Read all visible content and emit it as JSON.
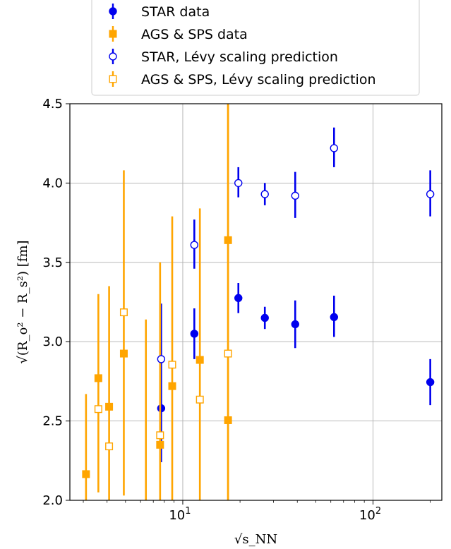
{
  "chart_data": {
    "type": "scatter",
    "xscale": "log",
    "xlim": [
      2.55,
      230
    ],
    "ylim": [
      2.0,
      4.5
    ],
    "grid": true,
    "legend_placement": "top-center",
    "xlabel": "√s_NN",
    "ylabel": "√(R_o² − R_s²) [fm]",
    "x_tick_labels": [
      {
        "value": 10,
        "base": "10",
        "exp": "1"
      },
      {
        "value": 100,
        "base": "10",
        "exp": "2"
      }
    ],
    "y_ticks": [
      2.0,
      2.5,
      3.0,
      3.5,
      4.0,
      4.5
    ],
    "y_tick_labels": [
      "2.0",
      "2.5",
      "3.0",
      "3.5",
      "4.0",
      "4.5"
    ],
    "series": [
      {
        "name": "STAR data",
        "color": "#0000ee",
        "marker": "filled-circle",
        "points": [
          {
            "x": 7.7,
            "y": 2.58,
            "lo": 2.24,
            "hi": 3.24
          },
          {
            "x": 11.5,
            "y": 3.05,
            "lo": 2.89,
            "hi": 3.21
          },
          {
            "x": 19.6,
            "y": 3.275,
            "lo": 3.18,
            "hi": 3.37
          },
          {
            "x": 27,
            "y": 3.15,
            "lo": 3.08,
            "hi": 3.22
          },
          {
            "x": 39,
            "y": 3.11,
            "lo": 2.96,
            "hi": 3.26
          },
          {
            "x": 62.4,
            "y": 3.155,
            "lo": 3.03,
            "hi": 3.29
          },
          {
            "x": 200,
            "y": 2.745,
            "lo": 2.6,
            "hi": 2.89
          }
        ]
      },
      {
        "name": "AGS & SPS data",
        "color": "#ffa500",
        "marker": "filled-square",
        "points": [
          {
            "x": 3.1,
            "y": 2.165,
            "lo": 2.0,
            "hi": 2.67
          },
          {
            "x": 3.6,
            "y": 2.77,
            "lo": 2.05,
            "hi": 3.3
          },
          {
            "x": 4.1,
            "y": 2.59,
            "lo": 2.0,
            "hi": 3.35
          },
          {
            "x": 4.9,
            "y": 2.925,
            "lo": 2.03,
            "hi": 4.08
          },
          {
            "x": 7.6,
            "y": 2.35,
            "lo": 2.0,
            "hi": 3.5
          },
          {
            "x": 8.8,
            "y": 2.72,
            "lo": 2.0,
            "hi": 3.79
          },
          {
            "x": 12.3,
            "y": 2.885,
            "lo": 2.0,
            "hi": 3.84
          },
          {
            "x": 17.3,
            "y": 3.64,
            "lo": 2.0,
            "hi": 4.5
          },
          {
            "x": 17.3,
            "y": 2.505,
            "lo": 2.0,
            "hi": 4.5
          }
        ]
      },
      {
        "name": "STAR, Lévy scaling prediction",
        "color": "#0000ee",
        "marker": "open-circle",
        "points": [
          {
            "x": 7.7,
            "y": 2.89,
            "lo": 2.89,
            "hi": 2.89
          },
          {
            "x": 11.5,
            "y": 3.61,
            "lo": 3.46,
            "hi": 3.77
          },
          {
            "x": 19.6,
            "y": 4.0,
            "lo": 3.91,
            "hi": 4.1
          },
          {
            "x": 27,
            "y": 3.93,
            "lo": 3.86,
            "hi": 4.0
          },
          {
            "x": 39,
            "y": 3.92,
            "lo": 3.78,
            "hi": 4.07
          },
          {
            "x": 62.4,
            "y": 4.22,
            "lo": 4.1,
            "hi": 4.35
          },
          {
            "x": 200,
            "y": 3.93,
            "lo": 3.79,
            "hi": 4.08
          }
        ]
      },
      {
        "name": "AGS & SPS, Lévy scaling prediction",
        "color": "#ffa500",
        "marker": "open-square",
        "points": [
          {
            "x": 3.6,
            "y": 2.575,
            "lo": 2.575,
            "hi": 2.575
          },
          {
            "x": 4.1,
            "y": 2.34,
            "lo": 2.34,
            "hi": 2.34
          },
          {
            "x": 4.9,
            "y": 3.185,
            "lo": 3.185,
            "hi": 3.185
          },
          {
            "x": 6.4,
            "y": null,
            "lo": 2.0,
            "hi": 3.14
          },
          {
            "x": 7.6,
            "y": 2.41,
            "lo": 2.41,
            "hi": 2.41
          },
          {
            "x": 8.8,
            "y": 2.855,
            "lo": 2.855,
            "hi": 2.855
          },
          {
            "x": 12.3,
            "y": 2.635,
            "lo": 2.635,
            "hi": 2.635
          },
          {
            "x": 17.3,
            "y": 2.925,
            "lo": 2.925,
            "hi": 2.925
          }
        ]
      }
    ]
  }
}
